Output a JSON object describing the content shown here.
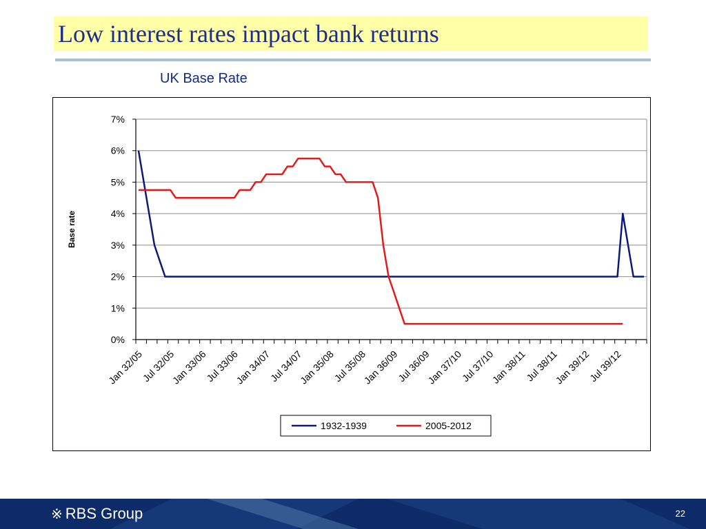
{
  "slide": {
    "title": "Low interest rates impact bank returns",
    "page_number": "22"
  },
  "footer": {
    "logo_mark": "※",
    "logo_text": "RBS Group"
  },
  "colors": {
    "title_bg": "#ffffa8",
    "title_text": "#1c2d8a",
    "footer_bg": "#0d2b66",
    "series_1932": "#0b1a7a",
    "series_2005": "#e41a1a"
  },
  "chart_data": {
    "type": "line",
    "title": "UK Base Rate",
    "xlabel": "",
    "ylabel": "Base rate",
    "ylim": [
      0,
      7
    ],
    "yticks": [
      "0%",
      "1%",
      "2%",
      "3%",
      "4%",
      "5%",
      "6%",
      "7%"
    ],
    "x_tick_labels": [
      "Jan 32/05",
      "Jul 32/05",
      "Jan 33/06",
      "Jul 33/06",
      "Jan 34/07",
      "Jul 34/07",
      "Jan 35/08",
      "Jul 35/08",
      "Jan 36/09",
      "Jul 36/09",
      "Jan 37/10",
      "Jul 37/10",
      "Jan 38/11",
      "Jul 38/11",
      "Jan 39/12",
      "Jul 39/12"
    ],
    "n_periods": 96,
    "grid": true,
    "legend_position": "bottom",
    "series": [
      {
        "name": "1932-1939",
        "color": "#0b1a7a",
        "points": [
          [
            0,
            6
          ],
          [
            3,
            3
          ],
          [
            4,
            2.5
          ],
          [
            5,
            2
          ],
          [
            90,
            2
          ],
          [
            91,
            4
          ],
          [
            92,
            3
          ],
          [
            93,
            2
          ],
          [
            95,
            2
          ]
        ]
      },
      {
        "name": "2005-2012",
        "color": "#e41a1a",
        "points": [
          [
            0,
            4.75
          ],
          [
            6,
            4.75
          ],
          [
            7,
            4.5
          ],
          [
            18,
            4.5
          ],
          [
            19,
            4.75
          ],
          [
            21,
            4.75
          ],
          [
            22,
            5
          ],
          [
            23,
            5
          ],
          [
            24,
            5.25
          ],
          [
            27,
            5.25
          ],
          [
            28,
            5.5
          ],
          [
            29,
            5.5
          ],
          [
            30,
            5.75
          ],
          [
            34,
            5.75
          ],
          [
            35,
            5.5
          ],
          [
            36,
            5.5
          ],
          [
            37,
            5.25
          ],
          [
            38,
            5.25
          ],
          [
            39,
            5
          ],
          [
            44,
            5
          ],
          [
            45,
            4.5
          ],
          [
            46,
            3
          ],
          [
            47,
            2
          ],
          [
            48,
            1.5
          ],
          [
            49,
            1
          ],
          [
            50,
            0.5
          ],
          [
            91,
            0.5
          ]
        ]
      }
    ]
  }
}
